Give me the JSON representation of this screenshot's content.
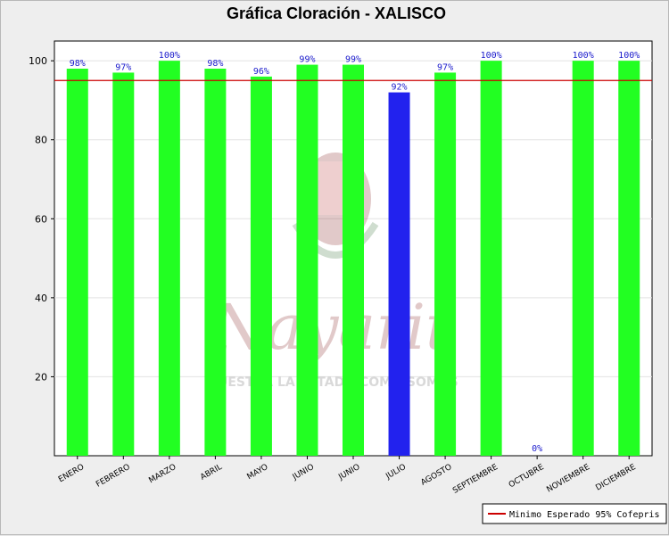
{
  "chart_data": {
    "type": "bar",
    "title": "Gráfica Cloración - XALISCO",
    "categories": [
      "ENERO",
      "FEBRERO",
      "MARZO",
      "ABRIL",
      "MAYO",
      "JUNIO",
      "JUNIO",
      "JULIO",
      "AGOSTO",
      "SEPTIEMBRE",
      "OCTUBRE",
      "NOVIEMBRE",
      "DICIEMBRE"
    ],
    "values": [
      98,
      97,
      100,
      98,
      96,
      99,
      99,
      92,
      97,
      100,
      0,
      100,
      100
    ],
    "data_labels": [
      "98%",
      "97%",
      "100%",
      "98%",
      "96%",
      "99%",
      "99%",
      "92%",
      "97%",
      "100%",
      "0%",
      "100%",
      "100%"
    ],
    "bar_colors": [
      "#22ff22",
      "#22ff22",
      "#22ff22",
      "#22ff22",
      "#22ff22",
      "#22ff22",
      "#22ff22",
      "#2222ee",
      "#22ff22",
      "#22ff22",
      "#22ff22",
      "#22ff22",
      "#22ff22"
    ],
    "ylim": [
      0,
      100
    ],
    "yticks": [
      20,
      40,
      60,
      80,
      100
    ],
    "grid": true,
    "reference_line": {
      "value": 95,
      "color": "#cc0000",
      "label": "Minimo Esperado 95% Cofepris"
    },
    "legend_position": "bottom-right"
  },
  "watermark": {
    "script_text": "Nayarit",
    "tagline": "NUESTRA LA ESTADO COMO SOMOS"
  }
}
